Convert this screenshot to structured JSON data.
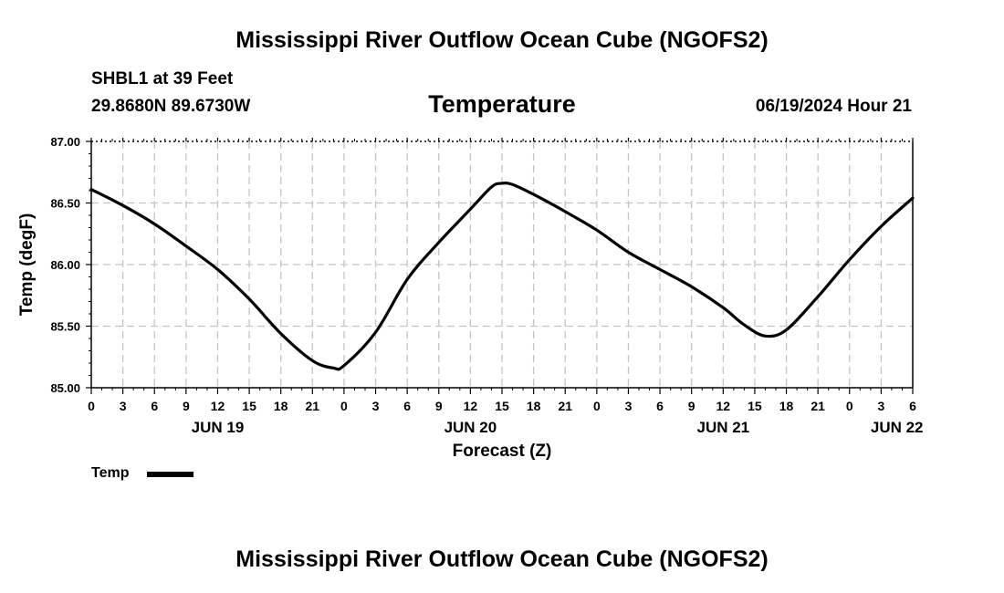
{
  "header": {
    "title": "Mississippi River Outflow Ocean Cube (NGOFS2)",
    "station": "SHBL1 at 39 Feet",
    "coordinates": "29.8680N  89.6730W",
    "subtitle": "Temperature",
    "datetime": "06/19/2024 Hour 21"
  },
  "footer": {
    "title": "Mississippi River Outflow Ocean Cube (NGOFS2)"
  },
  "legend": {
    "label": "Temp"
  },
  "chart_data": {
    "type": "line",
    "title": "Temperature",
    "xlabel": "Forecast (Z)",
    "ylabel": "Temp (degF)",
    "x_unit": "hours since JUN 19 00Z",
    "xlim": [
      0,
      78
    ],
    "ylim": [
      85.0,
      87.0
    ],
    "y_ticks": [
      "85.00",
      "85.50",
      "86.00",
      "86.50",
      "87.00"
    ],
    "y_tick_values": [
      85.0,
      85.5,
      86.0,
      86.5,
      87.0
    ],
    "x_ticks": [
      "0",
      "3",
      "6",
      "9",
      "12",
      "15",
      "18",
      "21",
      "0",
      "3",
      "6",
      "9",
      "12",
      "15",
      "18",
      "21",
      "0",
      "3",
      "6",
      "9",
      "12",
      "15",
      "18",
      "21",
      "0",
      "3",
      "6"
    ],
    "date_labels": [
      {
        "label": "JUN 19",
        "hour": 12
      },
      {
        "label": "JUN 20",
        "hour": 36
      },
      {
        "label": "JUN 21",
        "hour": 60
      },
      {
        "label": "JUN 22",
        "hour": 76.5
      }
    ],
    "grid": true,
    "series": [
      {
        "name": "Temp",
        "x": [
          0,
          3,
          6,
          9,
          12,
          15,
          18,
          21,
          23,
          24,
          27,
          30,
          33,
          36,
          38,
          39,
          40,
          42,
          45,
          48,
          51,
          54,
          57,
          60,
          62,
          64,
          66,
          69,
          72,
          75,
          78
        ],
        "values": [
          86.61,
          86.48,
          86.33,
          86.15,
          85.96,
          85.72,
          85.44,
          85.22,
          85.16,
          85.18,
          85.45,
          85.88,
          86.18,
          86.45,
          86.63,
          86.66,
          86.65,
          86.57,
          86.43,
          86.28,
          86.1,
          85.96,
          85.82,
          85.65,
          85.51,
          85.42,
          85.47,
          85.74,
          86.04,
          86.31,
          86.54
        ]
      }
    ]
  }
}
